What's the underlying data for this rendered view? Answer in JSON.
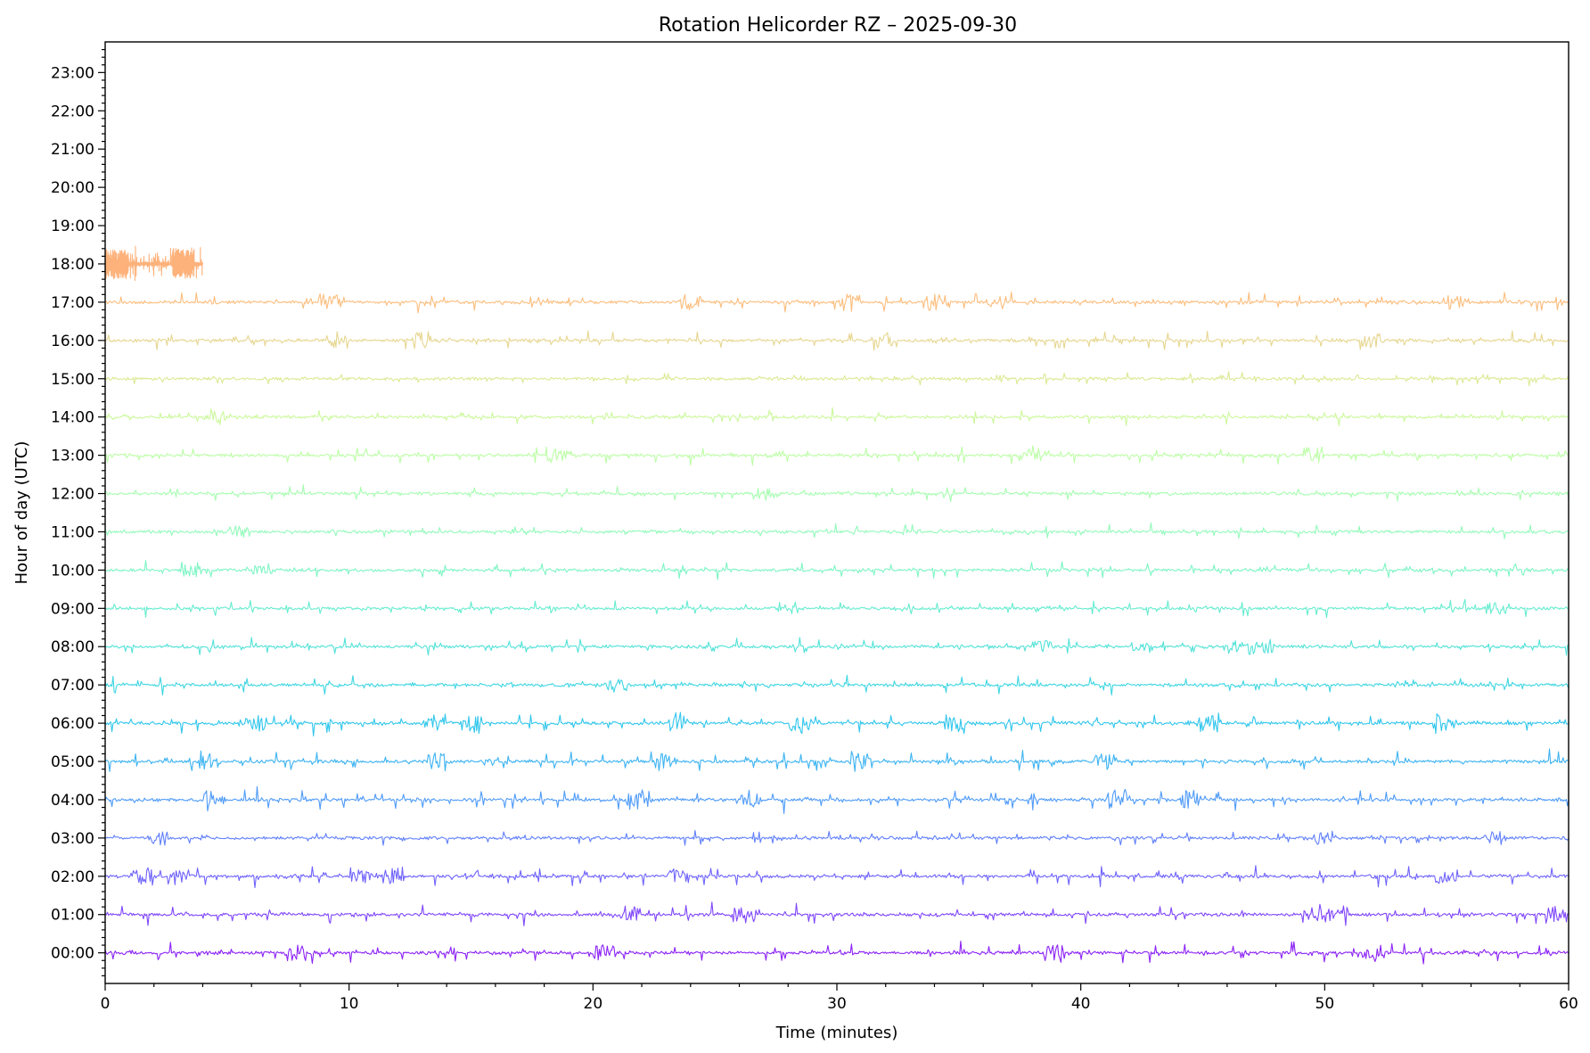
{
  "chart_data": {
    "type": "line",
    "title": "Rotation Helicorder RZ – 2025-09-30",
    "xlabel": "Time (minutes)",
    "ylabel": "Hour of day (UTC)",
    "xlim": [
      0,
      60
    ],
    "ylim": [
      -0.8,
      23.8
    ],
    "x_ticks": [
      0,
      10,
      20,
      30,
      40,
      50,
      60
    ],
    "x_tick_labels": [
      "0",
      "10",
      "20",
      "30",
      "40",
      "50",
      "60"
    ],
    "y_ticks": [
      0,
      1,
      2,
      3,
      4,
      5,
      6,
      7,
      8,
      9,
      10,
      11,
      12,
      13,
      14,
      15,
      16,
      17,
      18,
      19,
      20,
      21,
      22,
      23
    ],
    "y_tick_labels": [
      "00:00",
      "01:00",
      "02:00",
      "03:00",
      "04:00",
      "05:00",
      "06:00",
      "07:00",
      "08:00",
      "09:00",
      "10:00",
      "11:00",
      "12:00",
      "13:00",
      "14:00",
      "15:00",
      "16:00",
      "17:00",
      "18:00",
      "19:00",
      "20:00",
      "21:00",
      "22:00",
      "23:00"
    ],
    "grid": false,
    "series": [
      {
        "hour": 0,
        "x_end": 60,
        "color": "#8b22f5",
        "amplitude": 0.32,
        "burst_minutes": [
          7.8,
          20.5,
          38.9,
          52.0
        ]
      },
      {
        "hour": 1,
        "x_end": 60,
        "color": "#8047fb",
        "amplitude": 0.35,
        "burst_minutes": [
          21.5,
          26.2,
          49.5,
          50.5,
          59.5
        ]
      },
      {
        "hour": 2,
        "x_end": 60,
        "color": "#6f63fc",
        "amplitude": 0.32,
        "burst_minutes": [
          1.5,
          3.0,
          10.5,
          11.8,
          23.5,
          55.0
        ]
      },
      {
        "hour": 3,
        "x_end": 60,
        "color": "#6180fb",
        "amplitude": 0.25,
        "burst_minutes": [
          2.2,
          50.0,
          57.0
        ]
      },
      {
        "hour": 4,
        "x_end": 60,
        "color": "#4f9bf8",
        "amplitude": 0.38,
        "burst_minutes": [
          4.5,
          21.8,
          26.5,
          41.5,
          44.5
        ]
      },
      {
        "hour": 5,
        "x_end": 60,
        "color": "#3db3f2",
        "amplitude": 0.35,
        "burst_minutes": [
          4.3,
          13.5,
          23.0,
          31.0,
          41.0
        ]
      },
      {
        "hour": 6,
        "x_end": 60,
        "color": "#31c6ec",
        "amplitude": 0.35,
        "burst_minutes": [
          6.2,
          13.5,
          15.0,
          23.5,
          28.5,
          34.8,
          45.2,
          54.8
        ]
      },
      {
        "hour": 7,
        "x_end": 60,
        "color": "#3fd6e2",
        "amplitude": 0.28,
        "burst_minutes": [
          21.0
        ]
      },
      {
        "hour": 8,
        "x_end": 60,
        "color": "#53e2d8",
        "amplitude": 0.28,
        "burst_minutes": [
          38.5,
          42.5,
          46.5,
          47.5
        ]
      },
      {
        "hour": 9,
        "x_end": 60,
        "color": "#66eccf",
        "amplitude": 0.25,
        "burst_minutes": [
          28.0,
          57.0
        ]
      },
      {
        "hour": 10,
        "x_end": 60,
        "color": "#7ef5c4",
        "amplitude": 0.27,
        "burst_minutes": [
          3.5,
          6.5
        ]
      },
      {
        "hour": 11,
        "x_end": 60,
        "color": "#93fabb",
        "amplitude": 0.25,
        "burst_minutes": [
          5.5
        ]
      },
      {
        "hour": 12,
        "x_end": 60,
        "color": "#a7fdb1",
        "amplitude": 0.24,
        "burst_minutes": [
          27.0
        ]
      },
      {
        "hour": 13,
        "x_end": 60,
        "color": "#bcfea6",
        "amplitude": 0.3,
        "burst_minutes": [
          18.5,
          38.0,
          49.5
        ]
      },
      {
        "hour": 14,
        "x_end": 60,
        "color": "#ccf89c",
        "amplitude": 0.25,
        "burst_minutes": [
          4.5
        ]
      },
      {
        "hour": 15,
        "x_end": 60,
        "color": "#dce993",
        "amplitude": 0.22,
        "burst_minutes": []
      },
      {
        "hour": 16,
        "x_end": 60,
        "color": "#e6d690",
        "amplitude": 0.3,
        "burst_minutes": [
          9.5,
          12.8,
          32.0,
          52.0
        ]
      },
      {
        "hour": 17,
        "x_end": 60,
        "color": "#fbbd7d",
        "amplitude": 0.3,
        "burst_minutes": [
          9.2,
          24.0,
          30.5,
          34.0,
          36.5,
          55.5
        ]
      },
      {
        "hour": 18,
        "x_end": 4.0,
        "color": "#fdb27b",
        "amplitude": 0.5,
        "burst_minutes": [
          0.5,
          3.2
        ]
      }
    ]
  }
}
